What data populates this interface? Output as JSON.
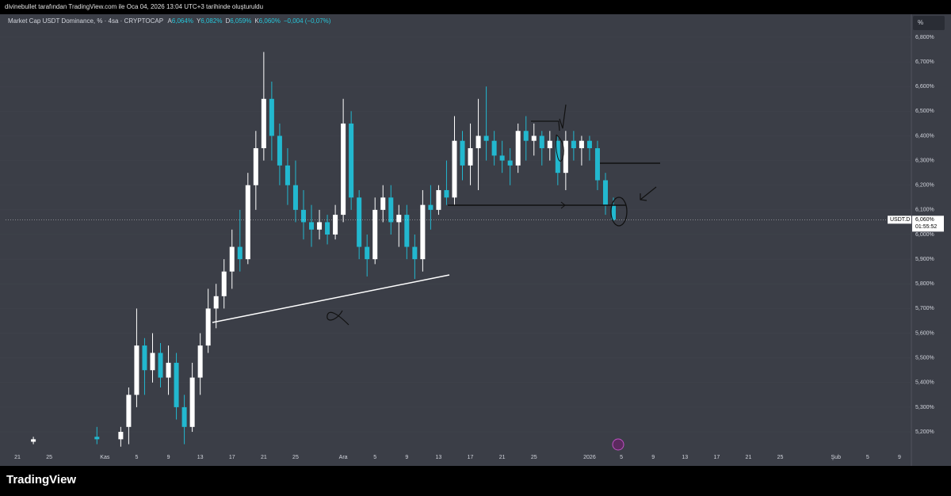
{
  "header": {
    "text": "divinebullet tarafından TradingView.com ile Oca 04, 2026 13:04 UTC+3 tarihinde oluşturuldu"
  },
  "footer": {
    "logo": "TradingView"
  },
  "chart_data": {
    "type": "candlestick",
    "legend": {
      "symbol": "Market Cap USDT Dominance, % · 4sa · CRYPTOCAP",
      "items": [
        {
          "key": "A",
          "text": "6,064%"
        },
        {
          "key": "Y",
          "text": "6,082%"
        },
        {
          "key": "D",
          "text": "6,059%"
        },
        {
          "key": "K",
          "text": "6,060%"
        }
      ],
      "change": "−0,004 (−0,07%)"
    },
    "y_unit": "%",
    "symbol_tag": "USDT.D",
    "last_price": {
      "value": 6.06,
      "label": "6,060%"
    },
    "countdown": "01:55:52",
    "up_color": "#ffffff",
    "down_color": "#22b8cf",
    "ylim": [
      5.062,
      6.893
    ],
    "yticks": [
      {
        "value": 5.2,
        "label": "5,200%"
      },
      {
        "value": 5.3,
        "label": "5,300%"
      },
      {
        "value": 5.4,
        "label": "5,400%"
      },
      {
        "value": 5.5,
        "label": "5,500%"
      },
      {
        "value": 5.6,
        "label": "5,600%"
      },
      {
        "value": 5.7,
        "label": "5,700%"
      },
      {
        "value": 5.8,
        "label": "5,800%"
      },
      {
        "value": 5.9,
        "label": "5,900%"
      },
      {
        "value": 6.0,
        "label": "6,000%"
      },
      {
        "value": 6.1,
        "label": "6,100%"
      },
      {
        "value": 6.2,
        "label": "6,200%"
      },
      {
        "value": 6.3,
        "label": "6,300%"
      },
      {
        "value": 6.4,
        "label": "6,400%"
      },
      {
        "value": 6.5,
        "label": "6,500%"
      },
      {
        "value": 6.6,
        "label": "6,600%"
      },
      {
        "value": 6.7,
        "label": "6,700%"
      },
      {
        "value": 6.8,
        "label": "6,800%"
      }
    ],
    "categories": [
      null,
      "21",
      null,
      null,
      null,
      "25",
      null,
      null,
      null,
      null,
      null,
      null,
      "Kas",
      null,
      null,
      null,
      "5",
      null,
      null,
      null,
      "9",
      null,
      null,
      null,
      "13",
      null,
      null,
      null,
      "17",
      null,
      null,
      null,
      "21",
      null,
      null,
      null,
      "25",
      null,
      null,
      null,
      null,
      null,
      "Ara",
      null,
      null,
      null,
      "5",
      null,
      null,
      null,
      "9",
      null,
      null,
      null,
      "13",
      null,
      null,
      null,
      "17",
      null,
      null,
      null,
      "21",
      null,
      null,
      null,
      "25",
      null,
      null,
      null,
      null,
      null,
      null,
      "2026",
      null,
      null,
      null,
      "5",
      null,
      null,
      null,
      "9",
      null,
      null,
      null,
      "13",
      null,
      null,
      null,
      "17",
      null,
      null,
      null,
      "21",
      null,
      null,
      null,
      "25",
      null,
      null,
      null,
      null,
      null,
      null,
      "Şub",
      null,
      null,
      null,
      "5",
      null,
      null,
      null,
      "9",
      null
    ],
    "open": [
      null,
      null,
      null,
      5.16,
      null,
      null,
      null,
      null,
      null,
      null,
      null,
      5.18,
      null,
      null,
      5.17,
      5.22,
      5.35,
      5.55,
      5.45,
      5.52,
      5.42,
      5.48,
      5.3,
      5.22,
      5.42,
      5.55,
      5.7,
      5.75,
      5.85,
      5.95,
      5.9,
      6.2,
      6.35,
      6.55,
      6.4,
      6.28,
      6.2,
      6.1,
      6.05,
      6.02,
      6.05,
      6.0,
      6.08,
      6.45,
      6.15,
      5.95,
      5.9,
      6.1,
      6.15,
      6.05,
      6.08,
      5.95,
      5.9,
      6.12,
      6.1,
      6.18,
      6.15,
      6.38,
      6.28,
      6.35,
      6.4,
      6.38,
      6.32,
      6.3,
      6.28,
      6.42,
      6.38,
      6.4,
      6.35,
      6.38,
      6.25,
      6.38,
      6.35,
      6.38,
      6.35,
      6.22,
      6.12,
      null,
      null,
      null,
      null,
      null,
      null,
      null,
      null,
      null,
      null,
      null,
      null,
      null,
      null,
      null,
      null,
      null,
      null,
      null,
      null,
      null,
      null,
      null,
      null,
      null,
      null,
      null,
      null,
      null,
      null,
      null,
      null,
      null,
      null,
      null,
      null,
      null
    ],
    "high": [
      null,
      null,
      null,
      5.18,
      null,
      null,
      null,
      null,
      null,
      null,
      null,
      5.22,
      null,
      null,
      5.22,
      5.38,
      5.7,
      5.58,
      5.6,
      5.56,
      5.55,
      5.52,
      5.35,
      5.48,
      5.6,
      5.78,
      5.8,
      5.9,
      6.02,
      6.1,
      6.25,
      6.42,
      6.74,
      6.62,
      6.45,
      6.35,
      6.3,
      6.18,
      6.12,
      6.1,
      6.08,
      6.12,
      6.55,
      6.5,
      6.18,
      6.0,
      6.15,
      6.2,
      6.2,
      6.12,
      6.12,
      6.0,
      6.18,
      6.2,
      6.2,
      6.3,
      6.48,
      6.42,
      6.45,
      6.55,
      6.6,
      6.42,
      6.38,
      6.35,
      6.45,
      6.48,
      6.45,
      6.42,
      6.42,
      6.4,
      6.42,
      6.42,
      6.4,
      6.4,
      6.38,
      6.25,
      6.15,
      null,
      null,
      null,
      null,
      null,
      null,
      null,
      null,
      null,
      null,
      null,
      null,
      null,
      null,
      null,
      null,
      null,
      null,
      null,
      null,
      null,
      null,
      null,
      null,
      null,
      null,
      null,
      null,
      null,
      null,
      null,
      null,
      null,
      null,
      null,
      null,
      null
    ],
    "low": [
      null,
      null,
      null,
      5.15,
      null,
      null,
      null,
      null,
      null,
      null,
      null,
      5.15,
      null,
      null,
      5.14,
      5.15,
      5.3,
      5.35,
      5.4,
      5.38,
      5.35,
      5.25,
      5.15,
      5.2,
      5.35,
      5.52,
      5.62,
      5.7,
      5.78,
      5.85,
      5.88,
      6.1,
      6.3,
      6.3,
      6.2,
      6.12,
      6.05,
      5.98,
      5.95,
      5.98,
      5.96,
      5.98,
      6.05,
      6.1,
      5.9,
      5.83,
      5.88,
      6.05,
      6.0,
      5.95,
      5.9,
      5.82,
      5.85,
      6.02,
      6.08,
      6.12,
      6.12,
      6.22,
      6.2,
      6.18,
      6.3,
      6.28,
      6.25,
      6.2,
      6.25,
      6.3,
      6.32,
      6.28,
      6.3,
      6.2,
      6.18,
      6.3,
      6.28,
      6.3,
      6.18,
      6.08,
      6.05,
      null,
      null,
      null,
      null,
      null,
      null,
      null,
      null,
      null,
      null,
      null,
      null,
      null,
      null,
      null,
      null,
      null,
      null,
      null,
      null,
      null,
      null,
      null,
      null,
      null,
      null,
      null,
      null,
      null,
      null,
      null,
      null,
      null,
      null,
      null,
      null,
      null
    ],
    "close": [
      null,
      null,
      null,
      5.17,
      null,
      null,
      null,
      null,
      null,
      null,
      null,
      5.17,
      null,
      null,
      5.2,
      5.35,
      5.55,
      5.45,
      5.52,
      5.42,
      5.48,
      5.3,
      5.22,
      5.42,
      5.55,
      5.7,
      5.75,
      5.85,
      5.95,
      5.9,
      6.2,
      6.35,
      6.55,
      6.4,
      6.28,
      6.2,
      6.1,
      6.05,
      6.02,
      6.05,
      6.0,
      6.08,
      6.45,
      6.15,
      5.95,
      5.9,
      6.1,
      6.15,
      6.05,
      6.08,
      5.95,
      5.9,
      6.12,
      6.1,
      6.18,
      6.15,
      6.38,
      6.28,
      6.35,
      6.4,
      6.38,
      6.32,
      6.3,
      6.28,
      6.42,
      6.38,
      6.4,
      6.35,
      6.38,
      6.25,
      6.38,
      6.35,
      6.38,
      6.35,
      6.22,
      6.12,
      6.06,
      null,
      null,
      null,
      null,
      null,
      null,
      null,
      null,
      null,
      null,
      null,
      null,
      null,
      null,
      null,
      null,
      null,
      null,
      null,
      null,
      null,
      null,
      null,
      null,
      null,
      null,
      null,
      null,
      null,
      null,
      null,
      null,
      null,
      null,
      null,
      null,
      null
    ]
  }
}
